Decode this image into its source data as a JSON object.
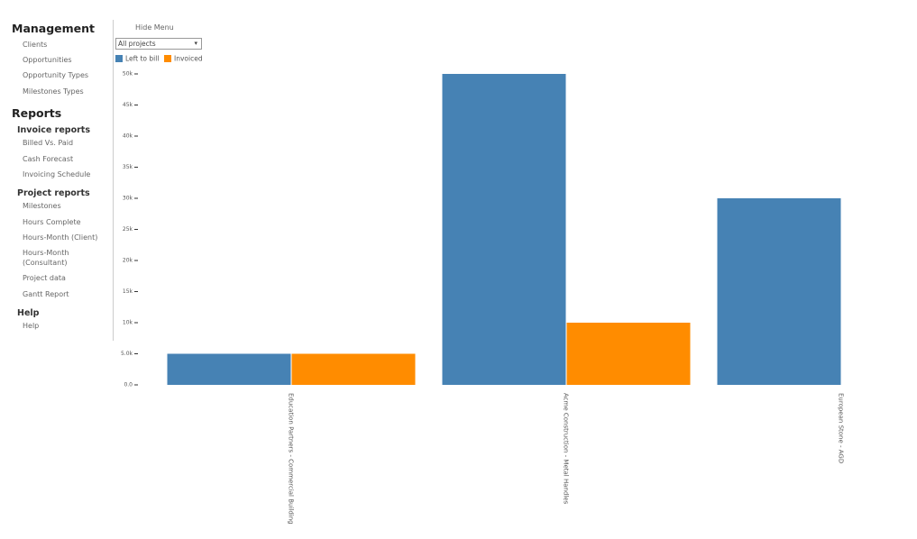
{
  "sidebar": {
    "sections": [
      {
        "title": "Management",
        "items": [
          "Clients",
          "Opportunities",
          "Opportunity Types",
          "Milestones Types"
        ]
      },
      {
        "title": "Reports",
        "groups": [
          {
            "title": "Invoice reports",
            "items": [
              "Billed Vs. Paid",
              "Cash Forecast",
              "Invoicing Schedule"
            ]
          },
          {
            "title": "Project reports",
            "items": [
              "Milestones",
              "Hours Complete",
              "Hours-Month (Client)",
              "Hours-Month (Consultant)",
              "Project data",
              "Gantt Report"
            ]
          },
          {
            "title": "Help",
            "items": [
              "Help"
            ]
          }
        ]
      }
    ]
  },
  "controls": {
    "hide_menu": "Hide Menu",
    "project_select": "All projects"
  },
  "chart_data": {
    "type": "bar",
    "categories": [
      "Education Partners - Commercial Building",
      "Acme Construction - Metal Handles",
      "European Stone - AGD"
    ],
    "series": [
      {
        "name": "Left to bill",
        "color": "#4682b4",
        "values": [
          5000,
          50000,
          30000
        ]
      },
      {
        "name": "Invoiced",
        "color": "#ff8c00",
        "values": [
          5000,
          10000,
          null
        ]
      }
    ],
    "ylim": [
      0,
      50000
    ],
    "yticks": [
      {
        "value": 0,
        "label": "0.0"
      },
      {
        "value": 5000,
        "label": "5.0k"
      },
      {
        "value": 10000,
        "label": "10k"
      },
      {
        "value": 15000,
        "label": "15k"
      },
      {
        "value": 20000,
        "label": "20k"
      },
      {
        "value": 25000,
        "label": "25k"
      },
      {
        "value": 30000,
        "label": "30k"
      },
      {
        "value": 35000,
        "label": "35k"
      },
      {
        "value": 40000,
        "label": "40k"
      },
      {
        "value": 45000,
        "label": "45k"
      },
      {
        "value": 50000,
        "label": "50k"
      }
    ]
  }
}
